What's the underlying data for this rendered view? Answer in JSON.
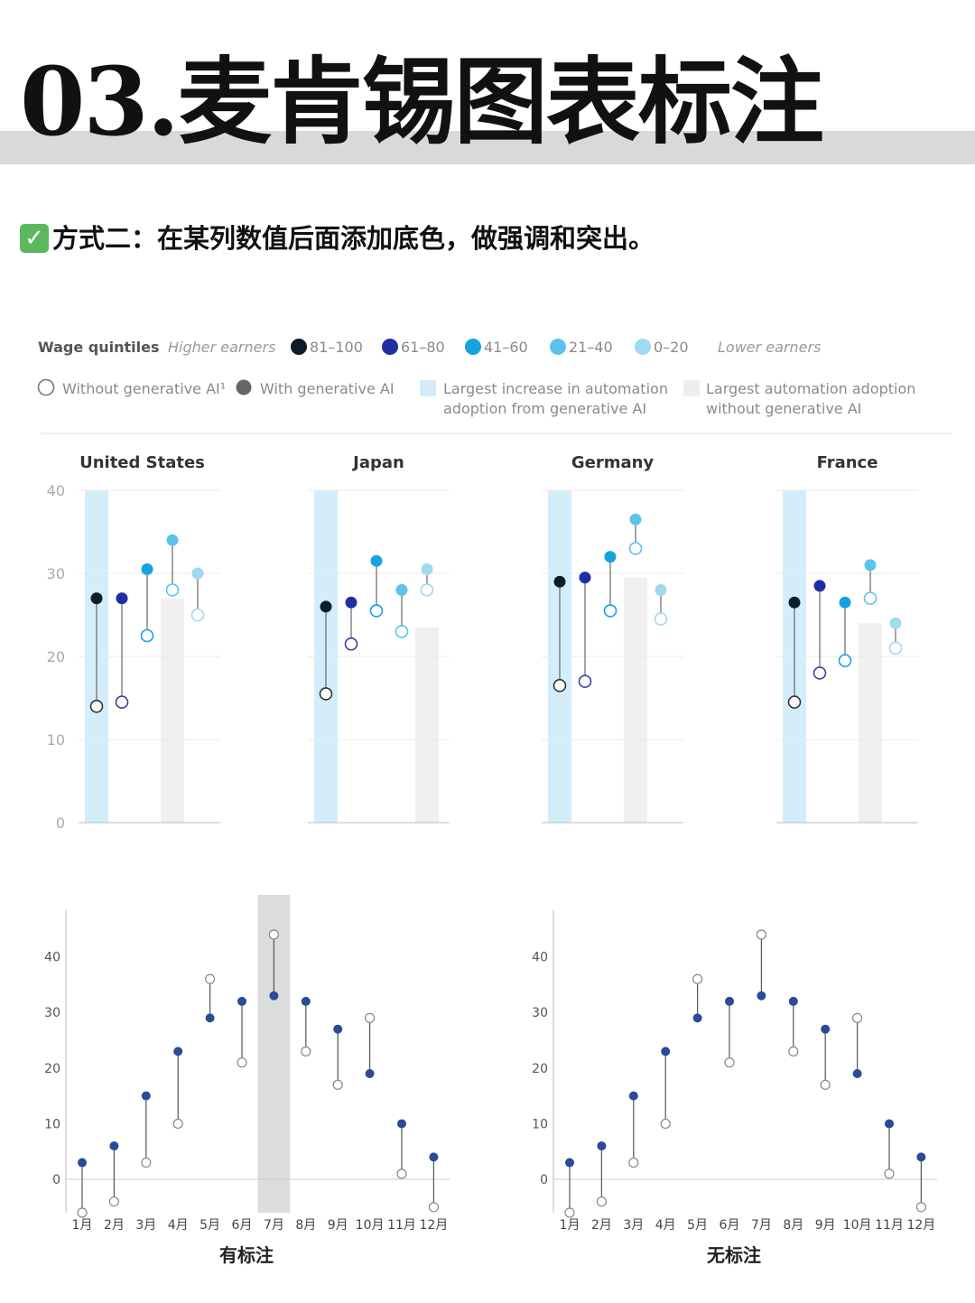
{
  "header": {
    "title": "03.麦肯锡图表标注",
    "check_icon": "✓",
    "subtitle": "方式二：在某列数值后面添加底色，做强调和突出。"
  },
  "chart_data": [
    {
      "type": "dumbbell",
      "legend": {
        "wage_label": "Wage quintiles",
        "higher": "Higher earners",
        "lower": "Lower earners",
        "quintiles": [
          {
            "label": "81–100",
            "color": "#0b1d2b"
          },
          {
            "label": "61–80",
            "color": "#1f2fa3"
          },
          {
            "label": "41–60",
            "color": "#14a3e0"
          },
          {
            "label": "21–40",
            "color": "#5cc4ec"
          },
          {
            "label": "0–20",
            "color": "#9fd9f2"
          }
        ],
        "without_ai": "Without generative AI¹",
        "with_ai": "With generative AI",
        "blue_band": [
          "Largest increase in automation",
          "adoption from generative AI"
        ],
        "grey_band": [
          "Largest automation adoption",
          "without generative AI"
        ]
      },
      "ylim": [
        0,
        40
      ],
      "yticks": [
        0,
        10,
        20,
        30,
        40
      ],
      "panels": [
        {
          "country": "United States",
          "without": [
            14,
            14.5,
            22.5,
            28,
            25
          ],
          "with": [
            27,
            27,
            30.5,
            34,
            30
          ],
          "blue_band": 0,
          "grey_band": 3
        },
        {
          "country": "Japan",
          "without": [
            15.5,
            21.5,
            25.5,
            23,
            28
          ],
          "with": [
            26,
            26.5,
            31.5,
            28,
            30.5
          ],
          "blue_band": 0,
          "grey_band": 4
        },
        {
          "country": "Germany",
          "without": [
            16.5,
            17,
            25.5,
            33,
            24.5
          ],
          "with": [
            29,
            29.5,
            32,
            36.5,
            28
          ],
          "blue_band": 0,
          "grey_band": 3
        },
        {
          "country": "France",
          "without": [
            14.5,
            18,
            19.5,
            27,
            21
          ],
          "with": [
            26.5,
            28.5,
            26.5,
            31,
            24
          ],
          "blue_band": 0,
          "grey_band": 3
        }
      ]
    },
    {
      "type": "dumbbell",
      "caption": "有标注",
      "highlight": "7月",
      "categories": [
        "1月",
        "2月",
        "3月",
        "4月",
        "5月",
        "6月",
        "7月",
        "8月",
        "9月",
        "10月",
        "11月",
        "12月"
      ],
      "filled": [
        3,
        6,
        15,
        23,
        29,
        32,
        33,
        32,
        27,
        19,
        10,
        4
      ],
      "open": [
        -6,
        -4,
        3,
        10,
        36,
        21,
        44,
        23,
        17,
        29,
        1,
        -5
      ],
      "ylim": [
        -6,
        48
      ],
      "yticks": [
        0,
        10,
        20,
        30,
        40
      ],
      "colors": {
        "filled": "#2a4a9a",
        "highlight_band": "#dcdcdc"
      }
    },
    {
      "type": "dumbbell",
      "caption": "无标注",
      "categories": [
        "1月",
        "2月",
        "3月",
        "4月",
        "5月",
        "6月",
        "7月",
        "8月",
        "9月",
        "10月",
        "11月",
        "12月"
      ],
      "filled": [
        3,
        6,
        15,
        23,
        29,
        32,
        33,
        32,
        27,
        19,
        10,
        4
      ],
      "open": [
        -6,
        -4,
        3,
        10,
        36,
        21,
        44,
        23,
        17,
        29,
        1,
        -5
      ],
      "ylim": [
        -6,
        48
      ],
      "yticks": [
        0,
        10,
        20,
        30,
        40
      ],
      "colors": {
        "filled": "#2a4a9a"
      }
    }
  ]
}
